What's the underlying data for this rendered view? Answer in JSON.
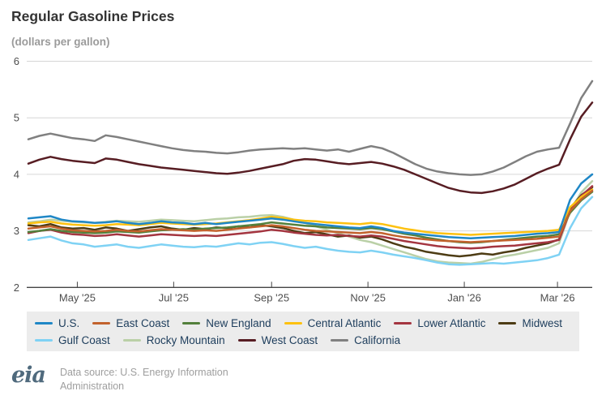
{
  "page": {
    "title": "Regular Gasoline Prices",
    "subtitle": "(dollars per gallon)",
    "footer": {
      "logo_text": "eia",
      "source_line1": "Data source: U.S. Energy Information",
      "source_line2": "Administration"
    }
  },
  "chart_data": {
    "type": "line",
    "title": "Regular Gasoline Prices",
    "ylabel": "dollars per gallon",
    "ylim": [
      2,
      6
    ],
    "yticks": [
      2,
      3,
      4,
      5,
      6
    ],
    "grid": "horizontal-light",
    "legend_position": "bottom",
    "x_axis": {
      "start_date": "2025-03-31",
      "step_days": 7,
      "num_points": 52,
      "ticks": [
        {
          "label": "May '25",
          "day_offset": 31
        },
        {
          "label": "Jul '25",
          "day_offset": 92
        },
        {
          "label": "Sep '25",
          "day_offset": 154
        },
        {
          "label": "Nov '25",
          "day_offset": 215
        },
        {
          "label": "Jan '26",
          "day_offset": 276
        },
        {
          "label": "Mar '26",
          "day_offset": 335
        }
      ]
    },
    "series": [
      {
        "name": "U.S.",
        "color": "#1f87c6",
        "values": [
          3.22,
          3.24,
          3.26,
          3.2,
          3.17,
          3.16,
          3.14,
          3.15,
          3.17,
          3.14,
          3.12,
          3.14,
          3.17,
          3.15,
          3.14,
          3.12,
          3.14,
          3.12,
          3.14,
          3.16,
          3.18,
          3.2,
          3.22,
          3.2,
          3.17,
          3.14,
          3.12,
          3.1,
          3.08,
          3.06,
          3.05,
          3.08,
          3.05,
          3.0,
          2.97,
          2.95,
          2.93,
          2.91,
          2.89,
          2.88,
          2.87,
          2.88,
          2.89,
          2.9,
          2.91,
          2.93,
          2.95,
          2.96,
          2.98,
          3.55,
          3.84,
          4.0
        ]
      },
      {
        "name": "East Coast",
        "color": "#c2622d",
        "values": [
          3.04,
          3.06,
          3.08,
          3.04,
          3.01,
          3.0,
          2.99,
          3.0,
          3.02,
          3.0,
          2.99,
          3.01,
          3.03,
          3.02,
          3.01,
          3.0,
          3.01,
          3.0,
          3.02,
          3.04,
          3.06,
          3.08,
          3.1,
          3.08,
          3.05,
          3.02,
          3.0,
          2.99,
          2.98,
          2.97,
          2.96,
          2.98,
          2.96,
          2.92,
          2.89,
          2.87,
          2.85,
          2.83,
          2.82,
          2.81,
          2.8,
          2.81,
          2.82,
          2.83,
          2.84,
          2.85,
          2.86,
          2.88,
          2.9,
          3.35,
          3.56,
          3.71
        ]
      },
      {
        "name": "New England",
        "color": "#53803c",
        "values": [
          2.98,
          3.0,
          3.03,
          3.0,
          2.98,
          2.97,
          2.96,
          2.97,
          2.99,
          2.98,
          2.97,
          2.99,
          3.01,
          3.02,
          3.03,
          3.02,
          3.04,
          3.05,
          3.06,
          3.08,
          3.1,
          3.12,
          3.15,
          3.13,
          3.11,
          3.09,
          3.08,
          3.06,
          3.05,
          3.04,
          3.03,
          3.05,
          3.03,
          2.99,
          2.95,
          2.92,
          2.88,
          2.85,
          2.82,
          2.8,
          2.79,
          2.8,
          2.82,
          2.84,
          2.86,
          2.88,
          2.9,
          2.91,
          2.94,
          3.32,
          3.54,
          3.69
        ]
      },
      {
        "name": "Central Atlantic",
        "color": "#fdc110",
        "values": [
          3.13,
          3.15,
          3.16,
          3.13,
          3.11,
          3.1,
          3.09,
          3.1,
          3.12,
          3.11,
          3.1,
          3.12,
          3.14,
          3.13,
          3.12,
          3.11,
          3.12,
          3.13,
          3.15,
          3.17,
          3.19,
          3.22,
          3.25,
          3.23,
          3.2,
          3.18,
          3.17,
          3.15,
          3.14,
          3.13,
          3.12,
          3.14,
          3.12,
          3.08,
          3.04,
          3.01,
          2.98,
          2.96,
          2.95,
          2.94,
          2.93,
          2.94,
          2.95,
          2.96,
          2.97,
          2.98,
          2.99,
          3.0,
          3.02,
          3.42,
          3.6,
          3.73
        ]
      },
      {
        "name": "Lower Atlantic",
        "color": "#a43540",
        "values": [
          2.96,
          3.0,
          3.02,
          2.97,
          2.94,
          2.93,
          2.91,
          2.92,
          2.94,
          2.92,
          2.9,
          2.92,
          2.94,
          2.93,
          2.92,
          2.91,
          2.92,
          2.91,
          2.93,
          2.95,
          2.97,
          2.99,
          3.02,
          3.0,
          2.97,
          2.95,
          2.93,
          2.92,
          2.93,
          2.91,
          2.9,
          2.92,
          2.9,
          2.86,
          2.82,
          2.79,
          2.76,
          2.73,
          2.71,
          2.7,
          2.69,
          2.7,
          2.72,
          2.73,
          2.74,
          2.76,
          2.78,
          2.8,
          2.84,
          3.35,
          3.62,
          3.79
        ]
      },
      {
        "name": "Midwest",
        "color": "#4d3c14",
        "values": [
          3.1,
          3.08,
          3.12,
          3.06,
          3.04,
          3.05,
          3.02,
          3.06,
          3.04,
          3.0,
          3.03,
          3.06,
          3.08,
          3.04,
          3.02,
          3.05,
          3.03,
          3.06,
          3.05,
          3.08,
          3.06,
          3.1,
          3.08,
          3.05,
          3.0,
          2.96,
          2.98,
          2.94,
          2.9,
          2.92,
          2.88,
          2.9,
          2.85,
          2.78,
          2.72,
          2.68,
          2.63,
          2.6,
          2.57,
          2.55,
          2.57,
          2.6,
          2.58,
          2.62,
          2.65,
          2.7,
          2.74,
          2.78,
          2.85,
          3.4,
          3.63,
          3.77
        ]
      },
      {
        "name": "Gulf Coast",
        "color": "#7fd2f4",
        "values": [
          2.84,
          2.87,
          2.9,
          2.83,
          2.78,
          2.76,
          2.72,
          2.74,
          2.76,
          2.72,
          2.7,
          2.73,
          2.76,
          2.74,
          2.72,
          2.71,
          2.73,
          2.72,
          2.75,
          2.78,
          2.76,
          2.79,
          2.8,
          2.77,
          2.73,
          2.7,
          2.72,
          2.68,
          2.65,
          2.63,
          2.62,
          2.65,
          2.62,
          2.58,
          2.55,
          2.52,
          2.48,
          2.44,
          2.41,
          2.4,
          2.41,
          2.42,
          2.43,
          2.42,
          2.44,
          2.46,
          2.48,
          2.52,
          2.58,
          3.05,
          3.4,
          3.6
        ]
      },
      {
        "name": "Rocky Mountain",
        "color": "#bad0a7",
        "values": [
          3.15,
          3.17,
          3.2,
          3.18,
          3.16,
          3.15,
          3.14,
          3.16,
          3.18,
          3.17,
          3.16,
          3.18,
          3.2,
          3.19,
          3.18,
          3.17,
          3.19,
          3.21,
          3.22,
          3.24,
          3.25,
          3.27,
          3.28,
          3.25,
          3.2,
          3.14,
          3.08,
          3.02,
          2.96,
          2.9,
          2.84,
          2.8,
          2.74,
          2.68,
          2.62,
          2.56,
          2.5,
          2.46,
          2.44,
          2.43,
          2.42,
          2.45,
          2.5,
          2.55,
          2.58,
          2.62,
          2.66,
          2.7,
          2.78,
          3.35,
          3.68,
          3.88
        ]
      },
      {
        "name": "West Coast",
        "color": "#571d23",
        "values": [
          4.19,
          4.26,
          4.31,
          4.27,
          4.24,
          4.22,
          4.2,
          4.28,
          4.26,
          4.22,
          4.18,
          4.15,
          4.12,
          4.1,
          4.08,
          4.06,
          4.04,
          4.02,
          4.01,
          4.03,
          4.06,
          4.1,
          4.14,
          4.18,
          4.24,
          4.27,
          4.26,
          4.23,
          4.2,
          4.18,
          4.2,
          4.22,
          4.19,
          4.14,
          4.08,
          4.0,
          3.92,
          3.84,
          3.76,
          3.71,
          3.68,
          3.67,
          3.7,
          3.75,
          3.82,
          3.92,
          4.02,
          4.1,
          4.17,
          4.62,
          5.02,
          5.27
        ]
      },
      {
        "name": "California",
        "color": "#808080",
        "values": [
          4.62,
          4.68,
          4.72,
          4.68,
          4.64,
          4.62,
          4.59,
          4.69,
          4.66,
          4.62,
          4.58,
          4.54,
          4.5,
          4.46,
          4.43,
          4.41,
          4.4,
          4.38,
          4.37,
          4.39,
          4.42,
          4.44,
          4.45,
          4.46,
          4.45,
          4.46,
          4.44,
          4.42,
          4.44,
          4.4,
          4.45,
          4.5,
          4.46,
          4.38,
          4.28,
          4.18,
          4.1,
          4.05,
          4.02,
          4.0,
          3.99,
          4.0,
          4.05,
          4.12,
          4.22,
          4.32,
          4.4,
          4.44,
          4.47,
          4.9,
          5.35,
          5.65
        ]
      }
    ]
  }
}
